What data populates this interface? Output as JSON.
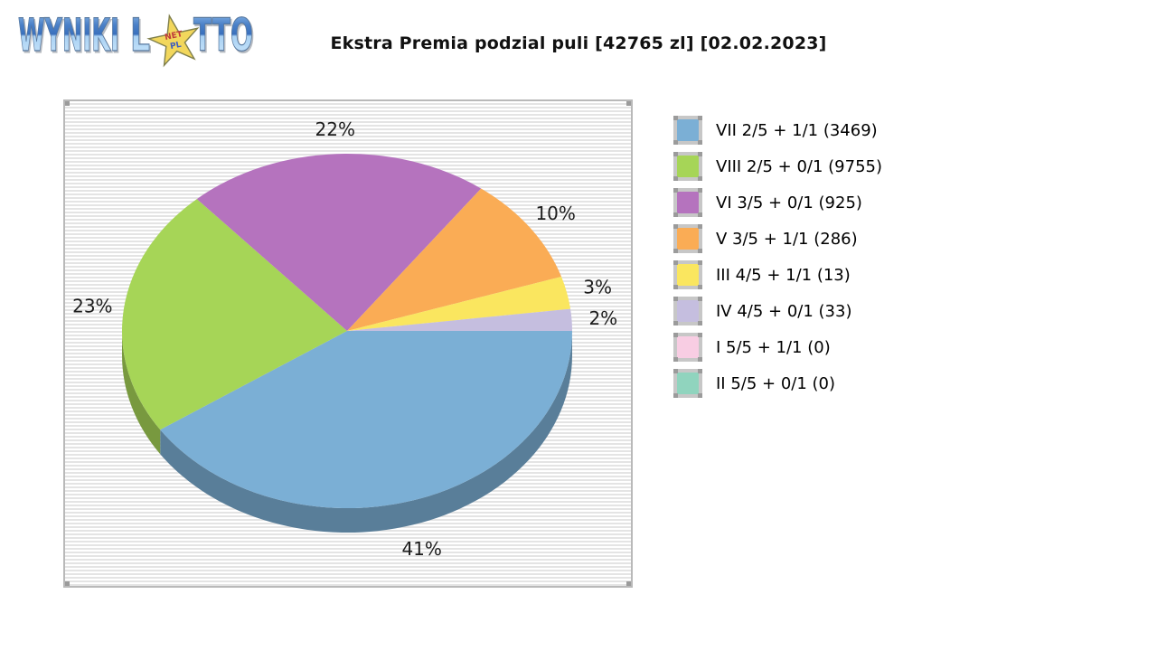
{
  "header": {
    "brand": {
      "word1": "WYNIKI",
      "word2_prefix": "L",
      "word2_suffix": "TTO",
      "star_text_line1": "NET",
      "star_text_line2": "PL"
    },
    "title": "Ekstra Premia podzial puli [42765 zl] [02.02.2023]"
  },
  "chart_data": {
    "type": "pie",
    "style": "3d",
    "title": "Ekstra Premia podzial puli [42765 zl] [02.02.2023]",
    "pool": "42765 zl",
    "date": "02.02.2023",
    "unit": "%",
    "direction": "clockwise",
    "start_angle_deg": 0,
    "legend_position": "right",
    "slices": [
      {
        "tier": "VII",
        "label": "VII 2/5 + 1/1 (3469)",
        "winners": 3469,
        "pct": 41,
        "color": "#7BAFD5"
      },
      {
        "tier": "VIII",
        "label": "VIII 2/5 + 0/1 (9755)",
        "winners": 9755,
        "pct": 23,
        "color": "#A6D557"
      },
      {
        "tier": "VI",
        "label": "VI 3/5 + 0/1 (925)",
        "winners": 925,
        "pct": 22,
        "color": "#B573BE"
      },
      {
        "tier": "V",
        "label": "V 3/5 + 1/1 (286)",
        "winners": 286,
        "pct": 10,
        "color": "#FAAC55"
      },
      {
        "tier": "III",
        "label": "III 4/5 + 1/1 (13)",
        "winners": 13,
        "pct": 3,
        "color": "#FAE65F"
      },
      {
        "tier": "IV",
        "label": "IV 4/5 + 0/1 (33)",
        "winners": 33,
        "pct": 2,
        "color": "#C5BEDF"
      },
      {
        "tier": "I",
        "label": "I 5/5 + 1/1 (0)",
        "winners": 0,
        "pct": 0,
        "color": "#F8CDE3"
      },
      {
        "tier": "II",
        "label": "II 5/5 + 0/1 (0)",
        "winners": 0,
        "pct": 0,
        "color": "#90D4BE"
      }
    ]
  }
}
